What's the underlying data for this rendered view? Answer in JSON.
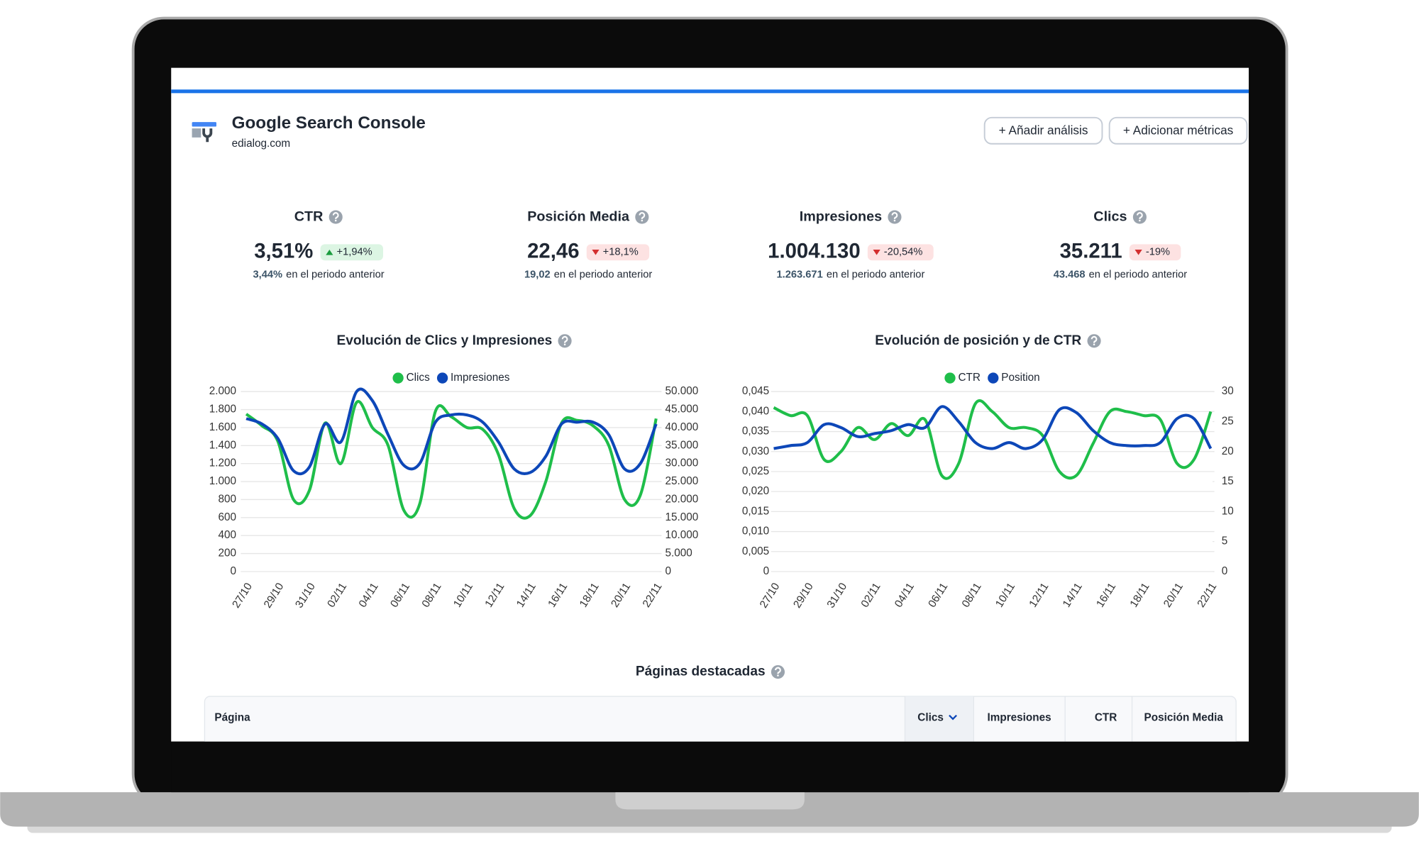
{
  "header": {
    "title": "Google Search Console",
    "subtitle": "edialog.com",
    "buttons": [
      "+ Añadir análisis",
      "+ Adicionar métricas"
    ]
  },
  "kpis": [
    {
      "label": "CTR",
      "value": "3,51%",
      "change": "+1,94%",
      "trend": "up",
      "previous": "3,44%",
      "previous_text": "en el periodo anterior"
    },
    {
      "label": "Posición Media",
      "value": "22,46",
      "change": "+18,1%",
      "trend": "down",
      "previous": "19,02",
      "previous_text": "en el periodo anterior"
    },
    {
      "label": "Impresiones",
      "value": "1.004.130",
      "change": "-20,54%",
      "trend": "down",
      "previous": "1.263.671",
      "previous_text": "en el periodo anterior"
    },
    {
      "label": "Clics",
      "value": "35.211",
      "change": "-19%",
      "trend": "down",
      "previous": "43.468",
      "previous_text": "en el periodo anterior"
    }
  ],
  "chart_data": [
    {
      "type": "line",
      "title": "Evolución de Clics y Impresiones",
      "legend": "top",
      "grid": true,
      "smooth": true,
      "categories": [
        "27/10",
        null,
        "29/10",
        null,
        "31/10",
        null,
        "02/11",
        null,
        "04/11",
        null,
        "06/11",
        null,
        "08/11",
        null,
        "10/11",
        null,
        "12/11",
        null,
        "14/11",
        null,
        "16/11",
        null,
        "18/11",
        null,
        "20/11",
        null,
        "22/11"
      ],
      "ylim": [
        0,
        2000
      ],
      "yticks": [
        0,
        200,
        400,
        600,
        800,
        {
          "value": 1000,
          "label": "1.000"
        },
        {
          "value": 1200,
          "label": "1.200"
        },
        {
          "value": 1400,
          "label": "1.400"
        },
        {
          "value": 1600,
          "label": "1.600"
        },
        {
          "value": 1800,
          "label": "1.800"
        },
        {
          "value": 2000,
          "label": "2.000"
        }
      ],
      "y2lim": [
        0,
        50000
      ],
      "y2ticks": [
        0,
        {
          "value": 5000,
          "label": "5.000"
        },
        {
          "value": 10000,
          "label": "10.000"
        },
        {
          "value": 15000,
          "label": "15.000"
        },
        {
          "value": 20000,
          "label": "20.000"
        },
        {
          "value": 25000,
          "label": "25.000"
        },
        {
          "value": 30000,
          "label": "30.000"
        },
        {
          "value": 35000,
          "label": "35.000"
        },
        {
          "value": 40000,
          "label": "40.000"
        },
        {
          "value": 45000,
          "label": "45.000"
        },
        {
          "value": 50000,
          "label": "50.000"
        }
      ],
      "series": [
        {
          "name": "Clics",
          "color": "#1fbe4a",
          "values": [
            1750,
            1620,
            1450,
            800,
            900,
            1650,
            1200,
            1880,
            1600,
            1400,
            680,
            750,
            1780,
            1720,
            1600,
            1580,
            1300,
            700,
            620,
            1000,
            1650,
            1680,
            1620,
            1400,
            800,
            850,
            1700
          ]
        },
        {
          "name": "Impresiones",
          "color": "#0d47b8",
          "axis": "y2",
          "values": [
            42500,
            41000,
            37000,
            28000,
            29000,
            41000,
            36000,
            50000,
            47500,
            38000,
            29500,
            30000,
            41500,
            43500,
            43500,
            41500,
            36000,
            28500,
            27500,
            32000,
            41000,
            41500,
            41500,
            38000,
            28500,
            30000,
            41000
          ]
        }
      ]
    },
    {
      "type": "line",
      "title": "Evolución de posición y de CTR",
      "legend": "top",
      "grid": true,
      "smooth": true,
      "categories": [
        "27/10",
        null,
        "29/10",
        null,
        "31/10",
        null,
        "02/11",
        null,
        "04/11",
        null,
        "06/11",
        null,
        "08/11",
        null,
        "10/11",
        null,
        "12/11",
        null,
        "14/11",
        null,
        "16/11",
        null,
        "18/11",
        null,
        "20/11",
        null,
        "22/11"
      ],
      "ylim": [
        0,
        0.045
      ],
      "yticks": [
        0,
        {
          "value": 0.005,
          "label": "0,005"
        },
        {
          "value": 0.01,
          "label": "0,010"
        },
        {
          "value": 0.015,
          "label": "0,015"
        },
        {
          "value": 0.02,
          "label": "0,020"
        },
        {
          "value": 0.025,
          "label": "0,025"
        },
        {
          "value": 0.03,
          "label": "0,030"
        },
        {
          "value": 0.035,
          "label": "0,035"
        },
        {
          "value": 0.04,
          "label": "0,040"
        },
        {
          "value": 0.045,
          "label": "0,045"
        }
      ],
      "y2lim": [
        0,
        30
      ],
      "y2ticks": [
        0,
        5,
        10,
        15,
        20,
        25,
        30
      ],
      "series": [
        {
          "name": "CTR",
          "color": "#1fbe4a",
          "values": [
            0.041,
            0.039,
            0.039,
            0.028,
            0.03,
            0.036,
            0.033,
            0.037,
            0.034,
            0.038,
            0.024,
            0.027,
            0.042,
            0.04,
            0.036,
            0.036,
            0.034,
            0.025,
            0.024,
            0.032,
            0.04,
            0.04,
            0.039,
            0.038,
            0.027,
            0.028,
            0.04
          ]
        },
        {
          "name": "Position",
          "color": "#0d47b8",
          "axis": "y2",
          "values": [
            20.5,
            21,
            21.5,
            24.5,
            24,
            22.5,
            23,
            23.5,
            24.5,
            24,
            27.5,
            25,
            21.5,
            20.5,
            21.5,
            20.5,
            22,
            27,
            26.5,
            23.5,
            21.5,
            21,
            21,
            21.5,
            25.5,
            25.5,
            20.5
          ]
        }
      ]
    }
  ],
  "section": {
    "title": "Páginas destacadas"
  },
  "table": {
    "columns": [
      "Página",
      "Clics",
      "Impresiones",
      "CTR",
      "Posición Media"
    ],
    "sorted_column": 1
  }
}
